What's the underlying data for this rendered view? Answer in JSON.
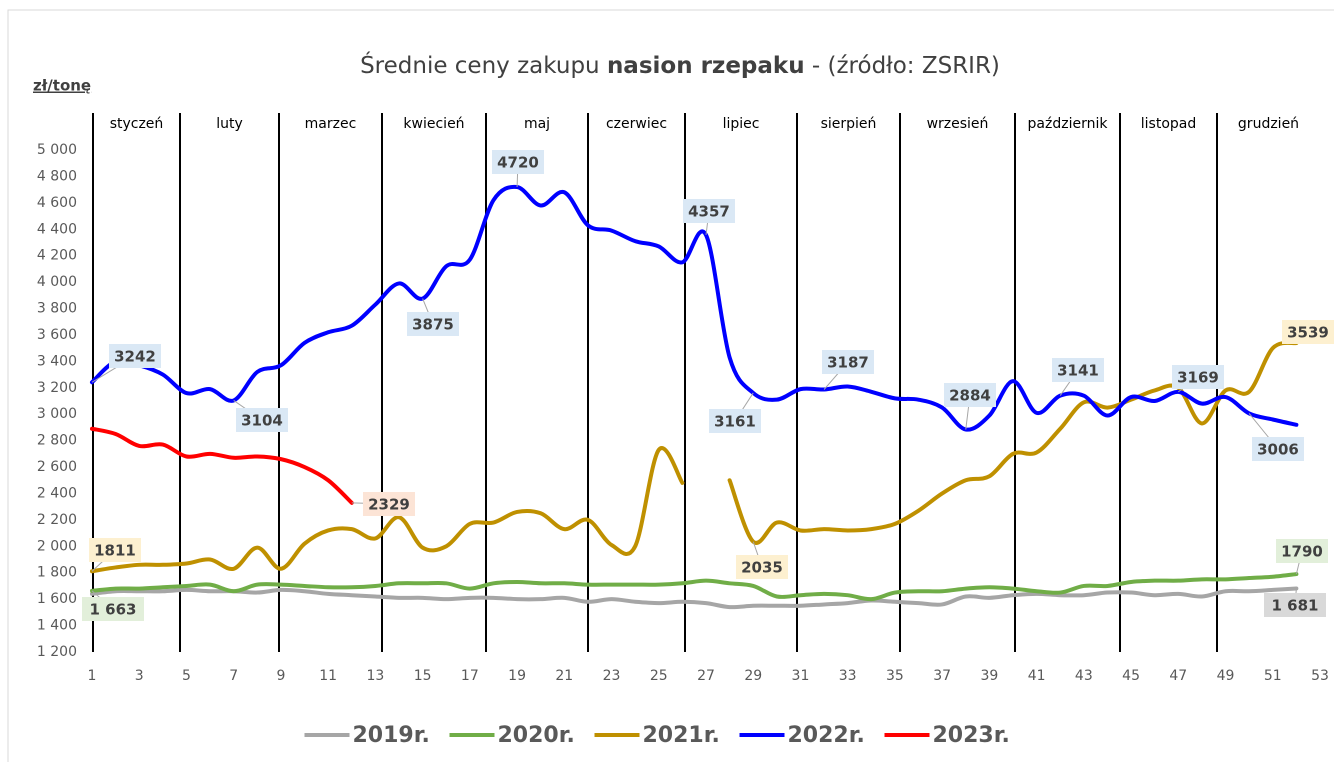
{
  "chart_data": {
    "type": "line",
    "title": [
      {
        "text": "Średnie ceny zakupu ",
        "bold": false
      },
      {
        "text": "nasion rzepaku",
        "bold": true
      },
      {
        "text": " - (źródło: ZSRIR)",
        "bold": false
      }
    ],
    "y_axis_label": "zł/tonę",
    "months": [
      "styczeń",
      "luty",
      "marzec",
      "kwiecień",
      "maj",
      "czerwiec",
      "lipiec",
      "sierpień",
      "wrzesień",
      "październik",
      "listopad",
      "grudzień"
    ],
    "x": [
      1,
      2,
      3,
      4,
      5,
      6,
      7,
      8,
      9,
      10,
      11,
      12,
      13,
      14,
      15,
      16,
      17,
      18,
      19,
      20,
      21,
      22,
      23,
      24,
      25,
      26,
      27,
      28,
      29,
      30,
      31,
      32,
      33,
      34,
      35,
      36,
      37,
      38,
      39,
      40,
      41,
      42,
      43,
      44,
      45,
      46,
      47,
      48,
      49,
      50,
      51,
      52
    ],
    "xlim": [
      1,
      53
    ],
    "xticks": [
      1,
      3,
      5,
      7,
      9,
      11,
      13,
      15,
      17,
      19,
      21,
      23,
      25,
      27,
      29,
      31,
      33,
      35,
      37,
      39,
      41,
      43,
      45,
      47,
      49,
      51,
      53
    ],
    "ylim": [
      1200,
      5000
    ],
    "yticks": [
      {
        "value": 1200,
        "label": "1 200"
      },
      {
        "value": 1400,
        "label": "1 400"
      },
      {
        "value": 1600,
        "label": "1 600"
      },
      {
        "value": 1800,
        "label": "1 800"
      },
      {
        "value": 2000,
        "label": "2 000"
      },
      {
        "value": 2200,
        "label": "2 200"
      },
      {
        "value": 2400,
        "label": "2 400"
      },
      {
        "value": 2600,
        "label": "2 600"
      },
      {
        "value": 2800,
        "label": "2 800"
      },
      {
        "value": 3000,
        "label": "3 000"
      },
      {
        "value": 3200,
        "label": "3 200"
      },
      {
        "value": 3400,
        "label": "3 400"
      },
      {
        "value": 3600,
        "label": "3 600"
      },
      {
        "value": 3800,
        "label": "3 800"
      },
      {
        "value": 4000,
        "label": "4 000"
      },
      {
        "value": 4200,
        "label": "4 200"
      },
      {
        "value": 4400,
        "label": "4 400"
      },
      {
        "value": 4600,
        "label": "4 600"
      },
      {
        "value": 4800,
        "label": "4 800"
      },
      {
        "value": 5000,
        "label": "5 000"
      }
    ],
    "grid": false,
    "legend": "bottom",
    "series": [
      {
        "name": "2019r.",
        "color": "#a6a6a6",
        "label_bg": "#d9d9d9",
        "values": [
          1640,
          1660,
          1660,
          1660,
          1670,
          1660,
          1660,
          1650,
          1670,
          1660,
          1640,
          1630,
          1620,
          1610,
          1610,
          1600,
          1610,
          1610,
          1600,
          1600,
          1610,
          1580,
          1600,
          1580,
          1570,
          1580,
          1570,
          1540,
          1550,
          1550,
          1550,
          1560,
          1570,
          1590,
          1580,
          1570,
          1560,
          1620,
          1610,
          1630,
          1640,
          1630,
          1630,
          1650,
          1650,
          1630,
          1640,
          1620,
          1660,
          1660,
          1670,
          1681
        ],
        "value_labels": [
          null,
          null,
          null,
          null,
          null,
          null,
          null,
          null,
          null,
          null,
          null,
          null,
          null,
          null,
          null,
          null,
          null,
          null,
          null,
          null,
          null,
          null,
          null,
          null,
          null,
          null,
          null,
          null,
          null,
          null,
          null,
          null,
          null,
          null,
          null,
          null,
          null,
          null,
          null,
          null,
          null,
          null,
          null,
          null,
          null,
          null,
          null,
          null,
          null,
          null,
          null,
          "1 681"
        ]
      },
      {
        "name": "2020r.",
        "color": "#70ad47",
        "label_bg": "#e2efda",
        "values": [
          1663,
          1680,
          1680,
          1690,
          1700,
          1710,
          1660,
          1710,
          1710,
          1700,
          1690,
          1690,
          1700,
          1720,
          1720,
          1720,
          1680,
          1720,
          1730,
          1720,
          1720,
          1710,
          1710,
          1710,
          1710,
          1720,
          1740,
          1720,
          1700,
          1620,
          1630,
          1640,
          1630,
          1600,
          1650,
          1660,
          1660,
          1680,
          1690,
          1680,
          1660,
          1650,
          1700,
          1700,
          1730,
          1740,
          1740,
          1750,
          1750,
          1760,
          1770,
          1790
        ],
        "value_labels": [
          "1 663",
          null,
          null,
          null,
          null,
          null,
          null,
          null,
          null,
          null,
          null,
          null,
          null,
          null,
          null,
          null,
          null,
          null,
          null,
          null,
          null,
          null,
          null,
          null,
          null,
          null,
          null,
          null,
          null,
          null,
          null,
          null,
          null,
          null,
          null,
          null,
          null,
          null,
          null,
          null,
          null,
          null,
          null,
          null,
          null,
          null,
          null,
          null,
          null,
          null,
          null,
          "1790"
        ]
      },
      {
        "name": "2021r.",
        "color": "#bf9000",
        "label_bg": "#fdf0d0",
        "values": [
          1811,
          1840,
          1860,
          1860,
          1870,
          1900,
          1830,
          1990,
          1830,
          2020,
          2120,
          2130,
          2060,
          2220,
          1990,
          2000,
          2170,
          2180,
          2260,
          2250,
          2130,
          2200,
          2010,
          2000,
          2730,
          2480,
          null,
          2500,
          2035,
          2180,
          2120,
          2130,
          2120,
          2130,
          2170,
          2270,
          2400,
          2500,
          2530,
          2700,
          2710,
          2890,
          3090,
          3050,
          3110,
          3180,
          3200,
          2930,
          3180,
          3170,
          3500,
          3539
        ],
        "value_labels": [
          "1811",
          null,
          null,
          null,
          null,
          null,
          null,
          null,
          null,
          null,
          null,
          null,
          null,
          null,
          null,
          null,
          null,
          null,
          null,
          null,
          null,
          null,
          null,
          null,
          null,
          null,
          null,
          null,
          "2035",
          null,
          null,
          null,
          null,
          null,
          null,
          null,
          null,
          null,
          null,
          null,
          null,
          null,
          null,
          null,
          null,
          null,
          null,
          null,
          null,
          null,
          null,
          "3539"
        ]
      },
      {
        "name": "2022r.",
        "color": "#0000ff",
        "label_bg": "#dae8f5",
        "values": [
          3242,
          3400,
          3370,
          3300,
          3160,
          3190,
          3104,
          3320,
          3370,
          3540,
          3620,
          3670,
          3830,
          3990,
          3875,
          4120,
          4170,
          4620,
          4720,
          4580,
          4680,
          4430,
          4390,
          4310,
          4270,
          4150,
          4357,
          3430,
          3161,
          3110,
          3190,
          3187,
          3210,
          3170,
          3120,
          3110,
          3050,
          2884,
          2990,
          3250,
          3010,
          3141,
          3140,
          2990,
          3130,
          3100,
          3169,
          3080,
          3130,
          3006,
          2960,
          2920
        ],
        "value_labels": [
          "3242",
          null,
          null,
          null,
          null,
          null,
          "3104",
          null,
          null,
          null,
          null,
          null,
          null,
          null,
          "3875",
          null,
          null,
          null,
          "4720",
          null,
          null,
          null,
          null,
          null,
          null,
          null,
          "4357",
          null,
          "3161",
          null,
          null,
          "3187",
          null,
          null,
          null,
          null,
          null,
          "2884",
          null,
          null,
          null,
          "3141",
          null,
          null,
          null,
          null,
          "3169",
          null,
          null,
          "3006",
          null,
          null
        ]
      },
      {
        "name": "2023r.",
        "color": "#ff0000",
        "label_bg": "#fce4d6",
        "values": [
          2890,
          2850,
          2760,
          2770,
          2680,
          2700,
          2670,
          2680,
          2660,
          2600,
          2500,
          2329,
          null,
          null,
          null,
          null,
          null,
          null,
          null,
          null,
          null,
          null,
          null,
          null,
          null,
          null,
          null,
          null,
          null,
          null,
          null,
          null,
          null,
          null,
          null,
          null,
          null,
          null,
          null,
          null,
          null,
          null,
          null,
          null,
          null,
          null,
          null,
          null,
          null,
          null,
          null,
          null
        ],
        "value_labels": [
          null,
          null,
          null,
          null,
          null,
          null,
          null,
          null,
          null,
          null,
          null,
          "2329",
          null,
          null,
          null,
          null,
          null,
          null,
          null,
          null,
          null,
          null,
          null,
          null,
          null,
          null,
          null,
          null,
          null,
          null,
          null,
          null,
          null,
          null,
          null,
          null,
          null,
          null,
          null,
          null,
          null,
          null,
          null,
          null,
          null,
          null,
          null,
          null,
          null,
          null,
          null,
          null
        ]
      }
    ]
  }
}
